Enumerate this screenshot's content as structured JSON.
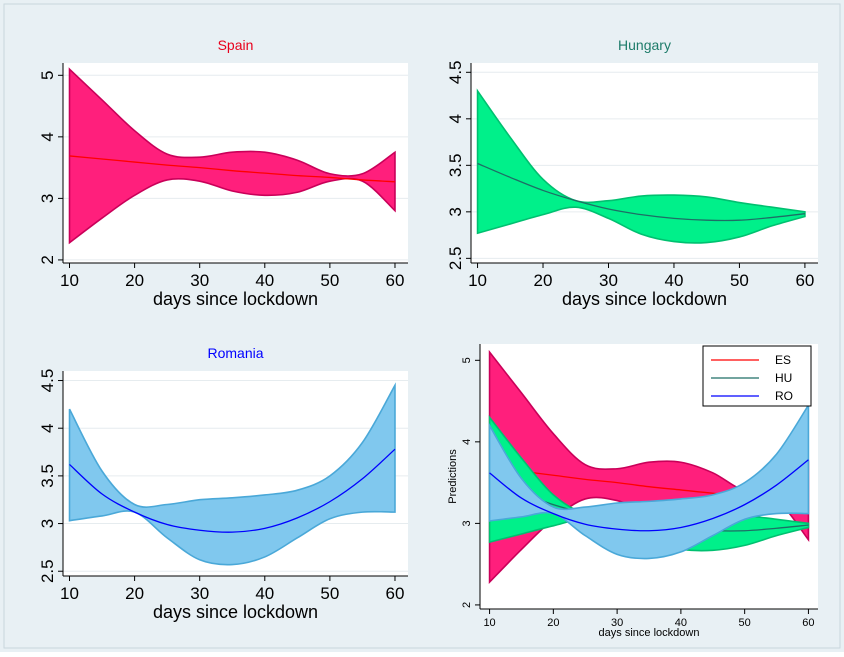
{
  "colors": {
    "outer_bg": "#e8f0f4",
    "plot_bg": "#ffffff",
    "grid": "#e6ecef",
    "axis": "#000000"
  },
  "chart_data": [
    {
      "type": "area",
      "title": "Spain",
      "title_color": "#e8001c",
      "xlabel": "days since lockdown",
      "ylabel": "",
      "xlim": [
        9,
        62
      ],
      "ylim": [
        1.95,
        5.2
      ],
      "xticks": [
        10,
        20,
        30,
        40,
        50,
        60
      ],
      "yticks": [
        2,
        3,
        4,
        5
      ],
      "grid": true,
      "fill": "#ff1f7c",
      "stroke": "#c90059",
      "line": "#ff0000",
      "x": [
        10,
        15,
        20,
        25,
        30,
        35,
        40,
        45,
        50,
        55,
        60
      ],
      "upper": [
        5.1,
        4.6,
        4.1,
        3.72,
        3.67,
        3.75,
        3.75,
        3.62,
        3.4,
        3.4,
        3.75
      ],
      "lower": [
        2.28,
        2.68,
        3.05,
        3.3,
        3.28,
        3.12,
        3.05,
        3.1,
        3.28,
        3.28,
        2.8
      ],
      "mean": [
        3.69,
        3.64,
        3.59,
        3.54,
        3.5,
        3.45,
        3.41,
        3.37,
        3.34,
        3.3,
        3.27
      ]
    },
    {
      "type": "area",
      "title": "Hungary",
      "title_color": "#1e7c6a",
      "xlabel": "days since lockdown",
      "ylabel": "",
      "xlim": [
        9,
        62
      ],
      "ylim": [
        2.45,
        4.6
      ],
      "xticks": [
        10,
        20,
        30,
        40,
        50,
        60
      ],
      "yticks": [
        2.5,
        3,
        3.5,
        4,
        4.5
      ],
      "grid": true,
      "fill": "#00f08a",
      "stroke": "#00c070",
      "line": "#1e6e66",
      "x": [
        10,
        15,
        20,
        25,
        30,
        35,
        40,
        45,
        50,
        55,
        60
      ],
      "upper": [
        4.3,
        3.8,
        3.35,
        3.12,
        3.12,
        3.17,
        3.18,
        3.16,
        3.1,
        3.05,
        3.0
      ],
      "lower": [
        2.77,
        2.87,
        2.97,
        3.05,
        2.93,
        2.76,
        2.68,
        2.67,
        2.73,
        2.85,
        2.95
      ],
      "mean": [
        3.52,
        3.37,
        3.23,
        3.12,
        3.03,
        2.97,
        2.93,
        2.91,
        2.91,
        2.94,
        2.98
      ]
    },
    {
      "type": "area",
      "title": "Romania",
      "title_color": "#0000ff",
      "xlabel": "days since lockdown",
      "ylabel": "",
      "xlim": [
        9,
        62
      ],
      "ylim": [
        2.45,
        4.6
      ],
      "xticks": [
        10,
        20,
        30,
        40,
        50,
        60
      ],
      "yticks": [
        2.5,
        3,
        3.5,
        4,
        4.5
      ],
      "grid": true,
      "fill": "#80c8ee",
      "stroke": "#4aa8d8",
      "line": "#0000ff",
      "x": [
        10,
        15,
        20,
        25,
        30,
        35,
        40,
        45,
        50,
        55,
        60
      ],
      "upper": [
        4.2,
        3.55,
        3.2,
        3.2,
        3.25,
        3.27,
        3.3,
        3.35,
        3.5,
        3.85,
        4.45
      ],
      "lower": [
        3.03,
        3.08,
        3.12,
        2.85,
        2.62,
        2.57,
        2.65,
        2.85,
        3.05,
        3.12,
        3.12
      ],
      "mean": [
        3.62,
        3.31,
        3.12,
        2.99,
        2.93,
        2.91,
        2.95,
        3.06,
        3.23,
        3.47,
        3.78
      ]
    },
    {
      "type": "area",
      "title": "",
      "xlabel": "days since lockdown",
      "ylabel": "Predictions",
      "xlim": [
        8.5,
        61.5
      ],
      "ylim": [
        1.95,
        5.2
      ],
      "xticks": [
        10,
        20,
        30,
        40,
        50,
        60
      ],
      "yticks": [
        2,
        3,
        4,
        5
      ],
      "grid": false,
      "legend": {
        "placement": "top-right",
        "entries": [
          {
            "label": "ES",
            "color": "#ff0000"
          },
          {
            "label": "HU",
            "color": "#1e6e66"
          },
          {
            "label": "RO",
            "color": "#0000ff"
          }
        ]
      },
      "bands": [
        {
          "ref": 0
        },
        {
          "ref": 1
        },
        {
          "ref": 2
        }
      ]
    }
  ]
}
